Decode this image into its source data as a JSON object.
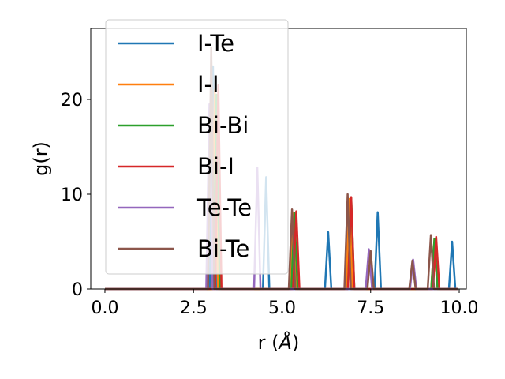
{
  "chart_data": {
    "type": "line",
    "xlabel": "r (",
    "xlabel_unit": "Å",
    "xlabel_close": ")",
    "ylabel": "g(r)",
    "xlim": [
      -0.4,
      10.2
    ],
    "ylim": [
      0,
      27.5
    ],
    "xticks": [
      0.0,
      2.5,
      5.0,
      7.5,
      10.0
    ],
    "xtick_labels": [
      "0.0",
      "2.5",
      "5.0",
      "7.5",
      "10.0"
    ],
    "yticks": [
      0,
      10,
      20
    ],
    "ytick_labels": [
      "0",
      "10",
      "20"
    ],
    "grid": false,
    "legend_placement": "upper-left",
    "series": [
      {
        "name": "I-Te",
        "color": "#1f77b4",
        "peaks": [
          [
            3.05,
            23.5
          ],
          [
            4.55,
            11.8
          ],
          [
            6.3,
            6.0
          ],
          [
            7.7,
            8.1
          ],
          [
            9.8,
            5.0
          ]
        ]
      },
      {
        "name": "I-I",
        "color": "#ff7f0e",
        "peaks": [
          [
            3.1,
            21.0
          ],
          [
            5.3,
            8.0
          ],
          [
            6.9,
            9.5
          ],
          [
            9.3,
            5.3
          ]
        ]
      },
      {
        "name": "Bi-Bi",
        "color": "#2ca02c",
        "peaks": [
          [
            3.15,
            20.5
          ],
          [
            5.35,
            8.0
          ],
          [
            6.95,
            9.6
          ],
          [
            9.3,
            5.3
          ]
        ]
      },
      {
        "name": "Bi-I",
        "color": "#d62728",
        "peaks": [
          [
            3.2,
            21.5
          ],
          [
            5.4,
            8.2
          ],
          [
            6.95,
            9.7
          ],
          [
            9.35,
            5.5
          ]
        ]
      },
      {
        "name": "Te-Te",
        "color": "#9467bd",
        "peaks": [
          [
            2.95,
            19.5
          ],
          [
            4.3,
            12.8
          ],
          [
            7.45,
            4.2
          ],
          [
            8.7,
            3.1
          ]
        ]
      },
      {
        "name": "Bi-Te",
        "color": "#8c564b",
        "peaks": [
          [
            3.0,
            25.5
          ],
          [
            5.28,
            8.4
          ],
          [
            6.85,
            10.0
          ],
          [
            9.2,
            5.7
          ],
          [
            7.5,
            4.0
          ],
          [
            8.68,
            3.0
          ]
        ]
      }
    ]
  }
}
